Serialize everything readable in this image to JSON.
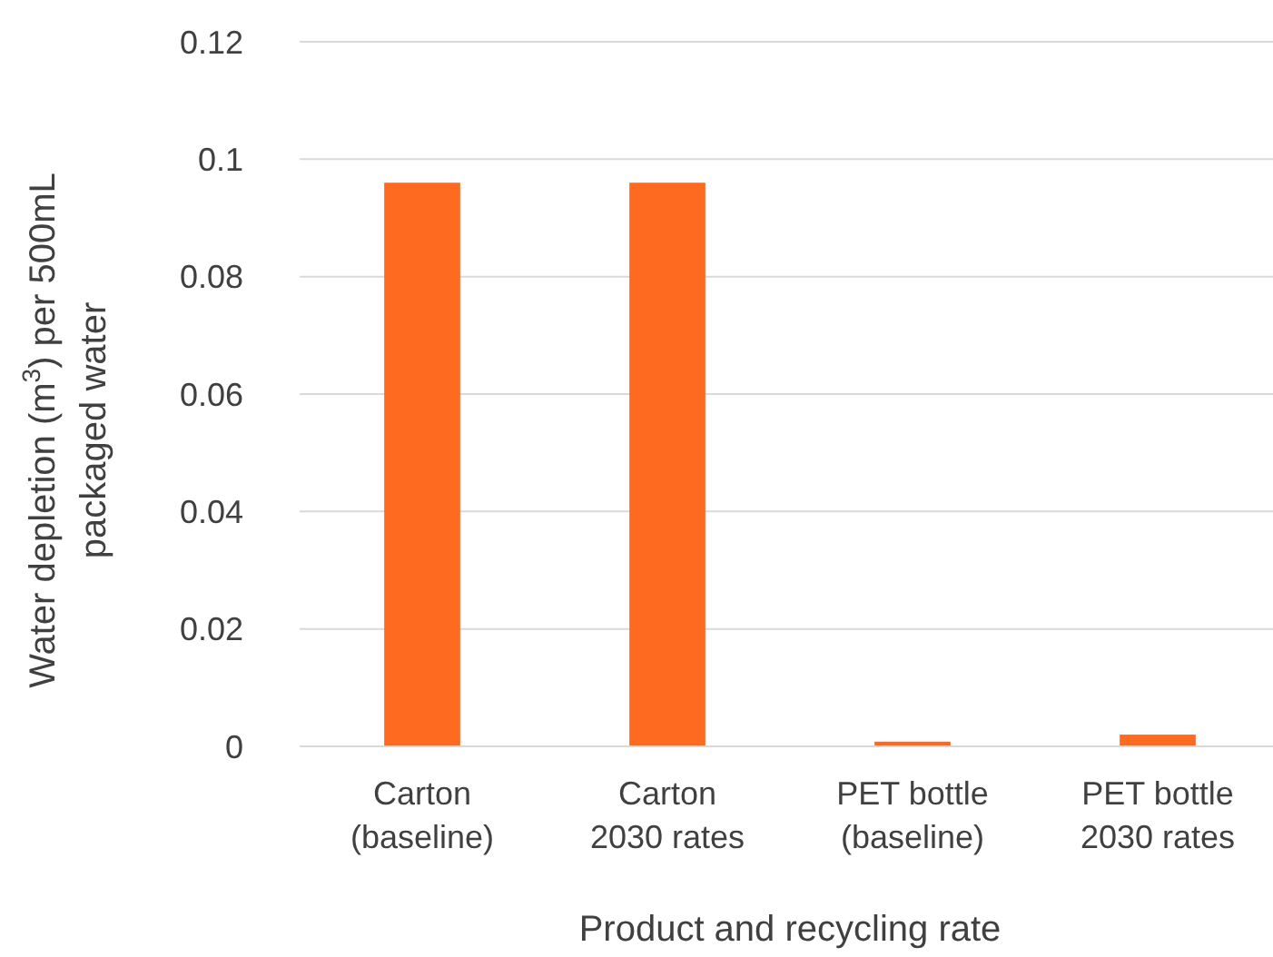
{
  "chart_data": {
    "type": "bar",
    "xlabel": "Product and recycling rate",
    "ylabel": "Water depletion (m$^{3}$) per 500mL packaged water",
    "categories": [
      "Carton (baseline)",
      "Carton 2030 rates",
      "PET bottle (baseline)",
      "PET bottle 2030 rates"
    ],
    "values": [
      0.096,
      0.096,
      0.0008,
      0.002
    ],
    "color": "#ff6a21",
    "ylim": [
      0,
      0.12
    ],
    "yticks": [
      0,
      0.02,
      0.04,
      0.06,
      0.08,
      0.1,
      0.12
    ],
    "grid": "y"
  }
}
